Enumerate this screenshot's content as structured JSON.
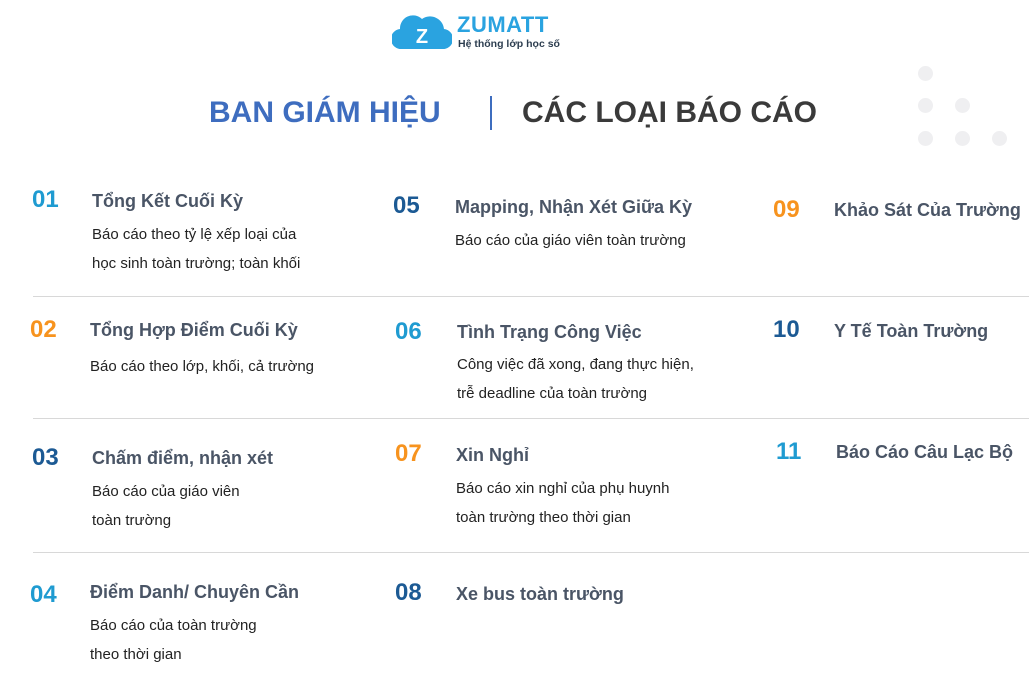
{
  "colors": {
    "orange": "#f7931e",
    "light_blue": "#1f9bd1",
    "dark_blue": "#1c5a94",
    "brand": "#2aa3e0"
  },
  "logo": {
    "letter": "Z",
    "name": "ZUMATT",
    "tagline": "Hệ thống lớp học số"
  },
  "header": {
    "left": "BAN GIÁM HIỆU",
    "right": "CÁC LOẠI BÁO CÁO"
  },
  "items": [
    {
      "num": "01",
      "title": "Tổng Kết Cuối Kỳ",
      "desc": [
        "Báo cáo theo tỷ lệ xếp loại của",
        "học sinh toàn trường; toàn khối"
      ],
      "color": "#1f9bd1"
    },
    {
      "num": "02",
      "title": "Tổng Hợp Điểm Cuối Kỳ",
      "desc": [
        "Báo cáo theo lớp, khối, cả trường"
      ],
      "color": "#f7931e"
    },
    {
      "num": "03",
      "title": "Chấm điểm, nhận xét",
      "desc": [
        "Báo  cáo  của  giáo  viên",
        "toàn trường"
      ],
      "color": "#1c5a94"
    },
    {
      "num": "04",
      "title": "Điểm Danh/ Chuyên Cần",
      "desc": [
        "Báo   cáo   của   toàn   trường",
        "theo thời gian"
      ],
      "color": "#1f9bd1"
    },
    {
      "num": "05",
      "title": "Mapping, Nhận Xét Giữa Kỳ",
      "desc": [
        "Báo cáo của giáo viên toàn trường"
      ],
      "color": "#1c5a94"
    },
    {
      "num": "06",
      "title": "Tình Trạng Công Việc",
      "desc": [
        "Công việc đã xong, đang thực hiện,",
        "trễ deadline của toàn trường"
      ],
      "color": "#1f9bd1"
    },
    {
      "num": "07",
      "title": "Xin Nghỉ",
      "desc": [
        "Báo cáo xin nghỉ của phụ huynh",
        "toàn trường theo thời gian"
      ],
      "color": "#f7931e"
    },
    {
      "num": "08",
      "title": "Xe bus toàn trường",
      "desc": [],
      "color": "#1c5a94"
    },
    {
      "num": "09",
      "title": "Khảo Sát Của Trường",
      "desc": [],
      "color": "#f7931e"
    },
    {
      "num": "10",
      "title": "Y Tế Toàn Trường",
      "desc": [],
      "color": "#1c5a94"
    },
    {
      "num": "11",
      "title": "Báo Cáo Câu Lạc Bộ",
      "desc": [],
      "color": "#1f9bd1"
    }
  ]
}
